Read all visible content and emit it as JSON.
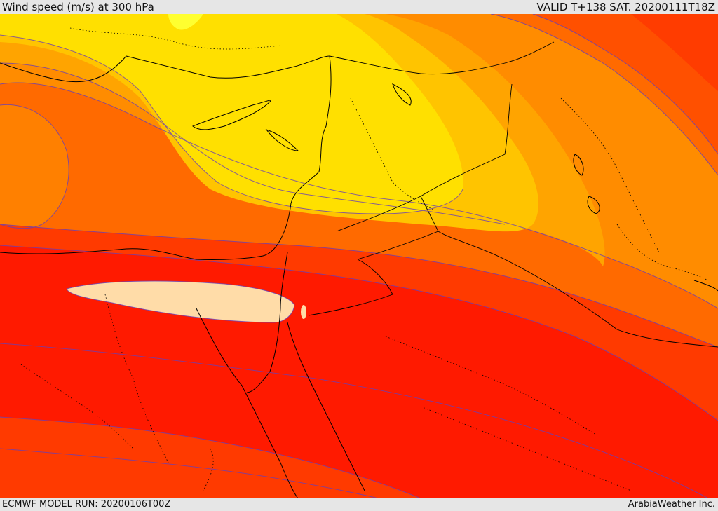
{
  "header": {
    "title": "Wind speed (m/s) at 300 hPa",
    "valid": "VALID T+138 SAT. 20200111T18Z"
  },
  "footer": {
    "model_run": "ECMWF MODEL RUN: 20200106T00Z",
    "credit": "ArabiaWeather Inc."
  },
  "colors": {
    "band_yellow": "#ffe100",
    "band_gold": "#ffc000",
    "band_orange_light": "#ffa500",
    "band_orange": "#ff8800",
    "band_orange_dark": "#ff6400",
    "band_red_orange": "#ff3b00",
    "band_red": "#ff1800",
    "band_core": "#ffdca8",
    "contour_line": "#6a3fb5",
    "coast_line": "#000000"
  }
}
